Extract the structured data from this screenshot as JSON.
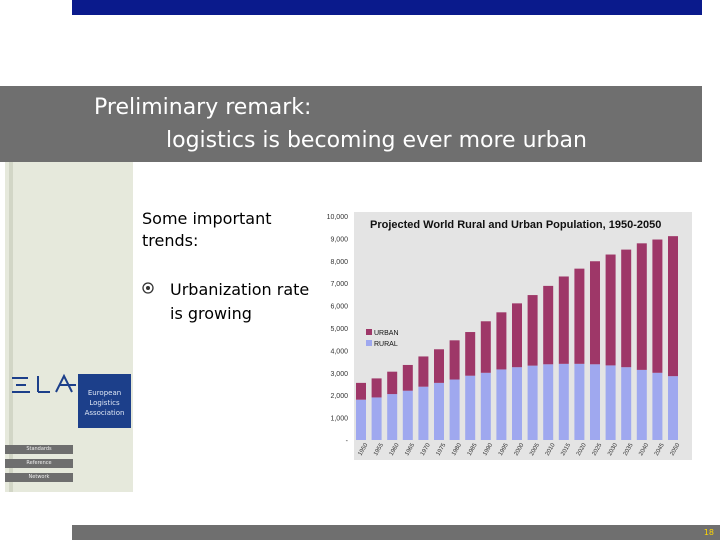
{
  "title": {
    "line1": "Preliminary remark:",
    "line2": "logistics is becoming ever more urban"
  },
  "trends_heading": "Some important trends:",
  "bullet": "Urbanization rate is growing",
  "logo": {
    "letters": "ELA",
    "line1": "European",
    "line2": "Logistics",
    "line3": "Association"
  },
  "side_tabs": [
    "Standards",
    "Reference",
    "Network"
  ],
  "page_number": "18",
  "colors": {
    "urban": "#9e3768",
    "rural": "#9fa8ef",
    "title_band": "#6f6f6f",
    "top_bar": "#0a1a8c",
    "logo_box": "#1c3f8a"
  },
  "chart_data": {
    "type": "bar",
    "stacked": true,
    "title": "Projected World Rural and Urban Population, 1950-2050",
    "y_tick_labels": [
      "-",
      "1,000",
      "2,000",
      "3,000",
      "4,000",
      "5,000",
      "6,000",
      "7,000",
      "8,000",
      "9,000",
      "10,000"
    ],
    "ylim": [
      0,
      10000
    ],
    "categories": [
      "1950",
      "1955",
      "1960",
      "1965",
      "1970",
      "1975",
      "1980",
      "1985",
      "1990",
      "1995",
      "2000",
      "2005",
      "2010",
      "2015",
      "2020",
      "2025",
      "2030",
      "2035",
      "2040",
      "2045",
      "2050"
    ],
    "series": [
      {
        "name": "RURAL",
        "values": [
          1800,
          1900,
          2050,
          2200,
          2380,
          2550,
          2700,
          2870,
          3000,
          3150,
          3250,
          3320,
          3380,
          3400,
          3400,
          3380,
          3330,
          3250,
          3130,
          3000,
          2850
        ]
      },
      {
        "name": "URBAN",
        "values": [
          750,
          850,
          1000,
          1150,
          1350,
          1500,
          1750,
          1950,
          2300,
          2550,
          2850,
          3150,
          3500,
          3900,
          4250,
          4600,
          4950,
          5250,
          5650,
          5950,
          6250
        ]
      }
    ],
    "legend": [
      "URBAN",
      "RURAL"
    ]
  }
}
